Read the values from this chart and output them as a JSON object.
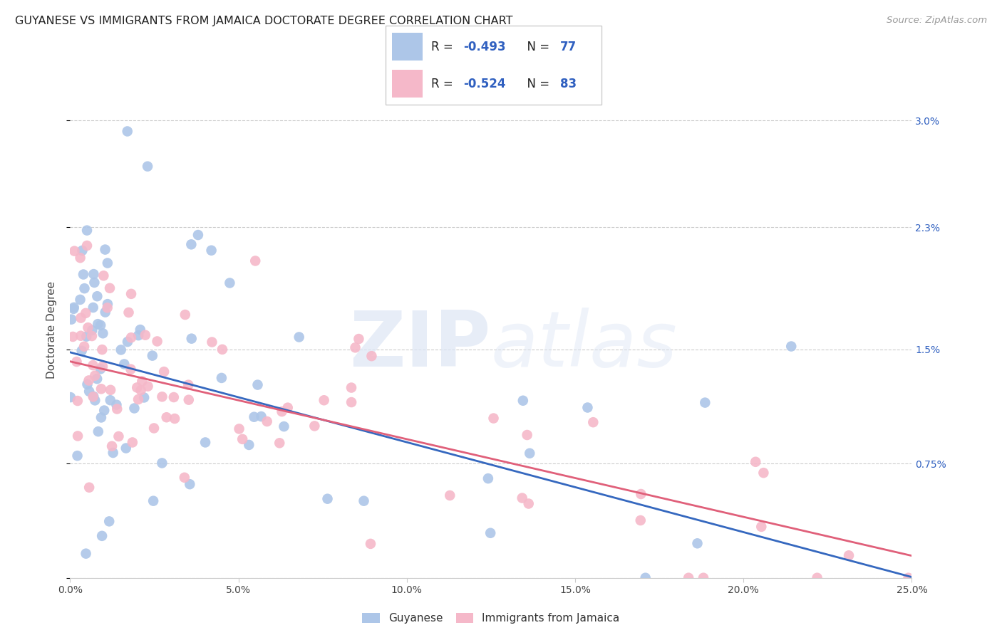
{
  "title": "GUYANESE VS IMMIGRANTS FROM JAMAICA DOCTORATE DEGREE CORRELATION CHART",
  "source": "Source: ZipAtlas.com",
  "xlabel_vals": [
    0.0,
    5.0,
    10.0,
    15.0,
    20.0,
    25.0
  ],
  "ylabel": "Doctorate Degree",
  "xlim": [
    0.0,
    25.0
  ],
  "ylim": [
    0.0,
    3.25
  ],
  "ytick_vals": [
    0.0,
    0.75,
    1.5,
    2.3,
    3.0
  ],
  "ytick_labels": [
    "",
    "0.75%",
    "1.5%",
    "2.3%",
    "3.0%"
  ],
  "blue_R": "-0.493",
  "blue_N": "77",
  "pink_R": "-0.524",
  "pink_N": "83",
  "blue_color": "#adc6e8",
  "pink_color": "#f5b8c9",
  "blue_line_color": "#3568bf",
  "pink_line_color": "#e0607a",
  "legend_label_blue": "Guyanese",
  "legend_label_pink": "Immigrants from Jamaica",
  "watermark_zip": "ZIP",
  "watermark_atlas": "atlas",
  "blue_intercept": 1.48,
  "blue_slope": -0.059,
  "pink_intercept": 1.42,
  "pink_slope": -0.051,
  "text_color_dark": "#3060c0",
  "text_color_label": "#444444",
  "grid_color": "#cccccc"
}
